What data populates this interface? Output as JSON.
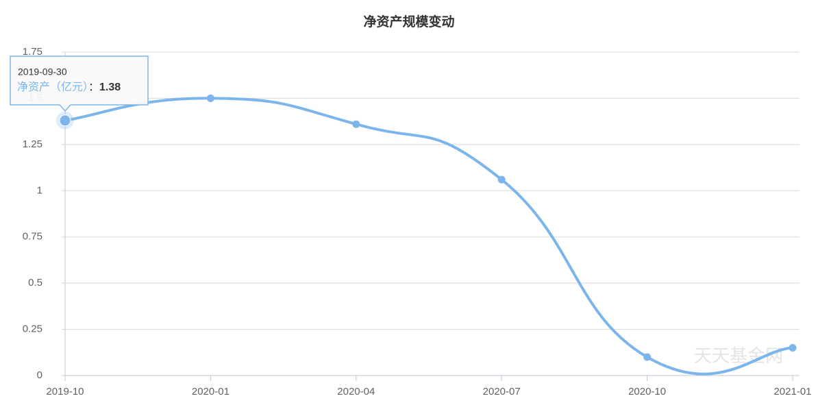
{
  "chart_data": {
    "type": "line",
    "title": "净资产规模变动",
    "categories": [
      "2019-10",
      "2020-01",
      "2020-04",
      "2020-07",
      "2020-10",
      "2021-01"
    ],
    "series": [
      {
        "name": "净资产（亿元）",
        "color": "#7cb5ec",
        "values": [
          1.38,
          1.5,
          1.36,
          1.06,
          0.1,
          0.15
        ]
      }
    ],
    "ylim": [
      0,
      1.75
    ],
    "yticks": [
      0,
      0.25,
      0.5,
      0.75,
      1,
      1.25,
      1.5,
      1.75
    ],
    "grid": true,
    "tooltip": {
      "date": "2019-09-30",
      "separator": "："
    },
    "watermark": "天天基金网"
  }
}
